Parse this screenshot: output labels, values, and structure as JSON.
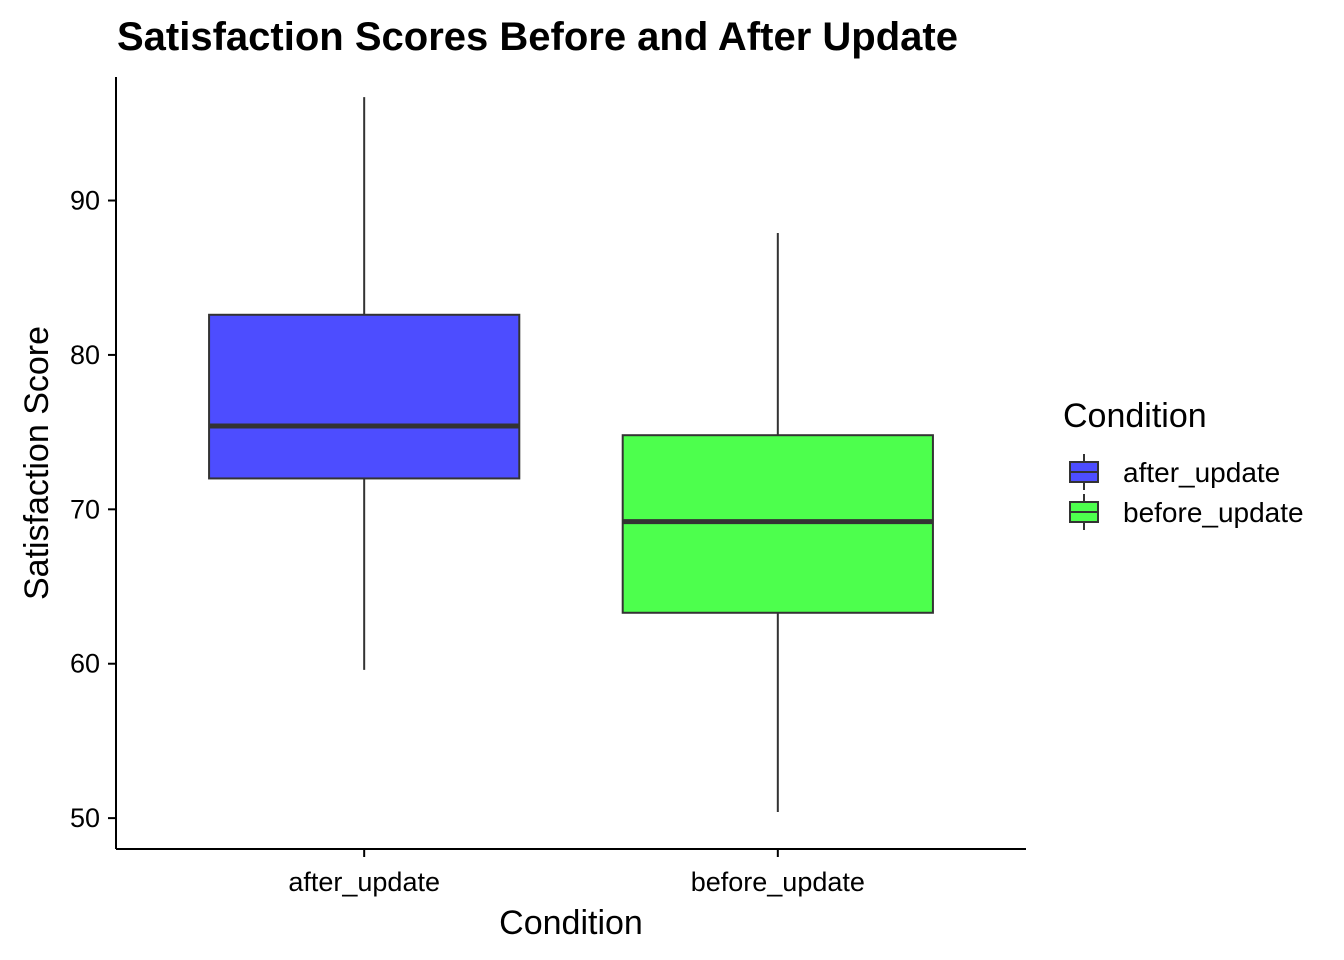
{
  "chart_data": {
    "type": "box",
    "title": "Satisfaction Scores Before and After Update",
    "xlabel": "Condition",
    "ylabel": "Satisfaction Score",
    "ylim": [
      48,
      98
    ],
    "yticks": [
      50,
      60,
      70,
      80,
      90
    ],
    "grid": false,
    "legend": {
      "title": "Condition",
      "position": "right",
      "entries": [
        "after_update",
        "before_update"
      ]
    },
    "categories": [
      "after_update",
      "before_update"
    ],
    "series": [
      {
        "category": "after_update",
        "color": "#4d4dff",
        "min": 59.6,
        "q1": 72.0,
        "median": 75.4,
        "q3": 82.6,
        "max": 96.7
      },
      {
        "category": "before_update",
        "color": "#4dff4d",
        "min": 50.4,
        "q1": 63.3,
        "median": 69.2,
        "q3": 74.8,
        "max": 87.9
      }
    ]
  }
}
